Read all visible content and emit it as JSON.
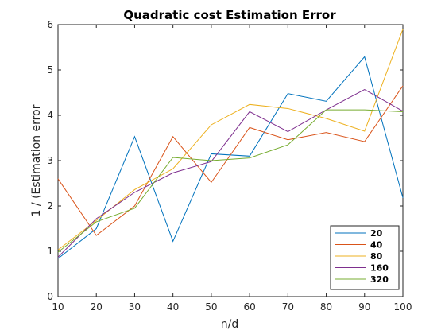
{
  "chart_data": {
    "type": "line",
    "title": "Quadratic cost Estimation Error",
    "xlabel": "n/d",
    "ylabel": "1 / (Estimation error",
    "xlim": [
      10,
      100
    ],
    "ylim": [
      0,
      6
    ],
    "xticks": [
      10,
      20,
      30,
      40,
      50,
      60,
      70,
      80,
      90,
      100
    ],
    "yticks": [
      0,
      1,
      2,
      3,
      4,
      5,
      6
    ],
    "grid": false,
    "legend_position": "bottom-right",
    "x": [
      10,
      20,
      30,
      40,
      50,
      60,
      70,
      80,
      90,
      100
    ],
    "series": [
      {
        "name": "20",
        "color": "#0072BD",
        "values": [
          0.84,
          1.5,
          3.53,
          1.22,
          3.15,
          3.1,
          4.48,
          4.31,
          5.29,
          2.18
        ]
      },
      {
        "name": "40",
        "color": "#D95319",
        "values": [
          2.6,
          1.35,
          2.0,
          3.53,
          2.52,
          3.73,
          3.46,
          3.62,
          3.42,
          4.65
        ]
      },
      {
        "name": "80",
        "color": "#EDB120",
        "values": [
          1.03,
          1.68,
          2.36,
          2.82,
          3.79,
          4.24,
          4.15,
          3.93,
          3.65,
          5.9
        ]
      },
      {
        "name": "160",
        "color": "#7E2F8E",
        "values": [
          0.87,
          1.72,
          2.3,
          2.73,
          2.98,
          4.08,
          3.64,
          4.12,
          4.57,
          4.09
        ]
      },
      {
        "name": "320",
        "color": "#77AC30",
        "values": [
          0.98,
          1.65,
          1.95,
          3.07,
          3.0,
          3.06,
          3.35,
          4.12,
          4.12,
          4.08
        ]
      }
    ]
  }
}
